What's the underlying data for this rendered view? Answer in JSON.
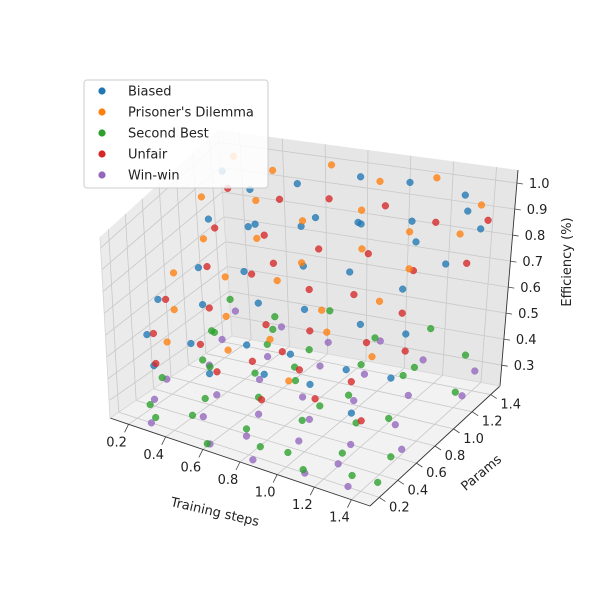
{
  "chart_data": {
    "type": "scatter",
    "title": "",
    "xlabel": "Training steps",
    "ylabel": "Params",
    "zlabel": "Efficiency (%)",
    "xlim": [
      0.1,
      1.5
    ],
    "ylim": [
      0.1,
      1.5
    ],
    "zlim": [
      0.22,
      1.05
    ],
    "x_ticks": [
      0.2,
      0.4,
      0.6,
      0.8,
      1.0,
      1.2,
      1.4
    ],
    "y_ticks": [
      0.2,
      0.4,
      0.6,
      0.8,
      1.0,
      1.2,
      1.4
    ],
    "z_ticks": [
      0.3,
      0.4,
      0.5,
      0.6,
      0.7,
      0.8,
      0.9,
      1.0
    ],
    "x_tick_labels": [
      "0.2",
      "0.4",
      "0.6",
      "0.8",
      "1.0",
      "1.2",
      "1.4"
    ],
    "y_tick_labels": [
      "0.2",
      "0.4",
      "0.6",
      "0.8",
      "1.0",
      "1.2",
      "1.4"
    ],
    "z_tick_labels": [
      "0.3",
      "0.4",
      "0.5",
      "0.6",
      "0.7",
      "0.8",
      "0.9",
      "1.0"
    ],
    "grid": true,
    "legend_position": "top-left",
    "series": [
      {
        "name": "Biased",
        "color": "#1f77b4",
        "points": [
          [
            0.15,
            1.4,
            0.92
          ],
          [
            0.3,
            1.35,
            0.88
          ],
          [
            0.55,
            1.3,
            0.95
          ],
          [
            0.8,
            1.42,
            0.97
          ],
          [
            1.05,
            1.38,
            0.99
          ],
          [
            1.3,
            1.41,
            0.96
          ],
          [
            1.45,
            1.25,
            0.9
          ],
          [
            0.2,
            1.1,
            0.82
          ],
          [
            0.45,
            1.05,
            0.85
          ],
          [
            0.7,
            1.15,
            0.88
          ],
          [
            0.95,
            1.08,
            0.91
          ],
          [
            1.2,
            1.12,
            0.86
          ],
          [
            1.4,
            1.0,
            0.84
          ],
          [
            0.25,
            0.85,
            0.7
          ],
          [
            0.5,
            0.8,
            0.74
          ],
          [
            0.75,
            0.9,
            0.77
          ],
          [
            1.0,
            0.85,
            0.8
          ],
          [
            1.25,
            0.88,
            0.76
          ],
          [
            0.15,
            0.6,
            0.62
          ],
          [
            0.4,
            0.55,
            0.66
          ],
          [
            0.65,
            0.62,
            0.69
          ],
          [
            0.9,
            0.58,
            0.72
          ],
          [
            1.15,
            0.65,
            0.68
          ],
          [
            1.4,
            0.6,
            0.7
          ],
          [
            0.2,
            0.35,
            0.55
          ],
          [
            0.45,
            0.3,
            0.58
          ],
          [
            0.7,
            0.38,
            0.6
          ],
          [
            0.95,
            0.32,
            0.63
          ],
          [
            1.2,
            0.4,
            0.59
          ],
          [
            1.45,
            0.35,
            0.62
          ],
          [
            0.3,
            0.2,
            0.48
          ],
          [
            0.6,
            0.18,
            0.52
          ],
          [
            0.85,
            0.25,
            0.55
          ],
          [
            1.1,
            0.22,
            0.57
          ],
          [
            1.35,
            0.15,
            0.53
          ],
          [
            0.35,
            1.2,
            0.78
          ],
          [
            0.6,
            1.22,
            0.81
          ],
          [
            0.85,
            1.28,
            0.84
          ],
          [
            1.1,
            1.3,
            0.87
          ],
          [
            1.35,
            1.33,
            0.93
          ]
        ]
      },
      {
        "name": "Prisoner's Dilemma",
        "color": "#ff7f0e",
        "points": [
          [
            0.2,
            1.42,
            0.98
          ],
          [
            0.4,
            1.38,
            0.96
          ],
          [
            0.65,
            1.45,
            0.99
          ],
          [
            0.9,
            1.4,
            0.97
          ],
          [
            1.15,
            1.44,
            1.0
          ],
          [
            1.4,
            1.36,
            0.95
          ],
          [
            0.15,
            1.15,
            0.89
          ],
          [
            0.4,
            1.18,
            0.9
          ],
          [
            0.65,
            1.12,
            0.87
          ],
          [
            0.9,
            1.2,
            0.92
          ],
          [
            1.15,
            1.16,
            0.88
          ],
          [
            1.4,
            1.14,
            0.91
          ],
          [
            0.25,
            0.92,
            0.8
          ],
          [
            0.5,
            0.95,
            0.83
          ],
          [
            0.75,
            0.88,
            0.79
          ],
          [
            1.0,
            0.98,
            0.85
          ],
          [
            1.25,
            0.94,
            0.82
          ],
          [
            0.2,
            0.68,
            0.72
          ],
          [
            0.45,
            0.7,
            0.74
          ],
          [
            0.7,
            0.72,
            0.76
          ],
          [
            0.95,
            0.66,
            0.7
          ],
          [
            1.2,
            0.74,
            0.75
          ],
          [
            0.3,
            0.45,
            0.65
          ],
          [
            0.55,
            0.48,
            0.66
          ],
          [
            0.8,
            0.42,
            0.63
          ],
          [
            1.05,
            0.5,
            0.68
          ],
          [
            1.3,
            0.46,
            0.64
          ],
          [
            0.35,
            0.25,
            0.58
          ],
          [
            0.65,
            0.28,
            0.6
          ],
          [
            1.0,
            0.2,
            0.57
          ]
        ]
      },
      {
        "name": "Second Best",
        "color": "#2ca02c",
        "points": [
          [
            0.15,
            1.4,
            0.4
          ],
          [
            0.4,
            1.35,
            0.38
          ],
          [
            0.65,
            1.42,
            0.42
          ],
          [
            0.9,
            1.38,
            0.36
          ],
          [
            1.15,
            1.45,
            0.41
          ],
          [
            1.4,
            1.3,
            0.39
          ],
          [
            0.2,
            1.1,
            0.35
          ],
          [
            0.45,
            1.15,
            0.33
          ],
          [
            0.7,
            1.08,
            0.37
          ],
          [
            0.95,
            1.12,
            0.34
          ],
          [
            1.2,
            1.05,
            0.36
          ],
          [
            1.45,
            1.1,
            0.32
          ],
          [
            0.25,
            0.85,
            0.31
          ],
          [
            0.5,
            0.9,
            0.29
          ],
          [
            0.75,
            0.82,
            0.33
          ],
          [
            1.0,
            0.88,
            0.3
          ],
          [
            1.25,
            0.8,
            0.28
          ],
          [
            0.15,
            0.6,
            0.28
          ],
          [
            0.4,
            0.55,
            0.26
          ],
          [
            0.65,
            0.62,
            0.3
          ],
          [
            0.9,
            0.58,
            0.27
          ],
          [
            1.15,
            0.65,
            0.29
          ],
          [
            1.4,
            0.52,
            0.25
          ],
          [
            0.2,
            0.35,
            0.24
          ],
          [
            0.45,
            0.3,
            0.27
          ],
          [
            0.7,
            0.38,
            0.25
          ],
          [
            0.95,
            0.32,
            0.23
          ],
          [
            1.2,
            0.4,
            0.26
          ],
          [
            1.45,
            0.28,
            0.24
          ],
          [
            0.3,
            0.2,
            0.25
          ],
          [
            0.6,
            0.15,
            0.23
          ],
          [
            0.85,
            0.22,
            0.26
          ],
          [
            1.1,
            0.18,
            0.24
          ],
          [
            1.35,
            0.2,
            0.27
          ],
          [
            0.55,
            1.0,
            0.45
          ],
          [
            0.8,
            0.7,
            0.43
          ],
          [
            1.05,
            0.45,
            0.4
          ],
          [
            0.35,
            0.75,
            0.48
          ],
          [
            1.3,
            0.95,
            0.44
          ],
          [
            0.5,
            0.4,
            0.46
          ]
        ]
      },
      {
        "name": "Unfair",
        "color": "#d62728",
        "points": [
          [
            0.18,
            1.38,
            0.86
          ],
          [
            0.42,
            1.4,
            0.84
          ],
          [
            0.68,
            1.35,
            0.89
          ],
          [
            0.92,
            1.42,
            0.87
          ],
          [
            1.18,
            1.38,
            0.85
          ],
          [
            1.42,
            1.4,
            0.88
          ],
          [
            0.22,
            1.12,
            0.78
          ],
          [
            0.48,
            1.08,
            0.8
          ],
          [
            0.72,
            1.14,
            0.76
          ],
          [
            0.98,
            1.1,
            0.79
          ],
          [
            1.22,
            1.06,
            0.77
          ],
          [
            1.45,
            1.12,
            0.81
          ],
          [
            0.28,
            0.88,
            0.7
          ],
          [
            0.52,
            0.84,
            0.72
          ],
          [
            0.78,
            0.9,
            0.68
          ],
          [
            1.02,
            0.86,
            0.71
          ],
          [
            1.28,
            0.82,
            0.69
          ],
          [
            0.18,
            0.62,
            0.62
          ],
          [
            0.42,
            0.58,
            0.64
          ],
          [
            0.68,
            0.64,
            0.6
          ],
          [
            0.92,
            0.6,
            0.63
          ],
          [
            1.18,
            0.66,
            0.61
          ],
          [
            1.42,
            0.56,
            0.65
          ],
          [
            0.22,
            0.38,
            0.55
          ],
          [
            0.48,
            0.34,
            0.57
          ],
          [
            0.72,
            0.4,
            0.53
          ],
          [
            0.98,
            0.36,
            0.56
          ],
          [
            1.22,
            0.42,
            0.54
          ],
          [
            0.32,
            0.18,
            0.5
          ],
          [
            0.62,
            0.22,
            0.52
          ],
          [
            0.88,
            0.16,
            0.48
          ],
          [
            1.12,
            0.24,
            0.51
          ],
          [
            1.38,
            0.2,
            0.49
          ],
          [
            0.58,
            0.95,
            0.74
          ],
          [
            0.85,
            0.45,
            0.58
          ]
        ]
      },
      {
        "name": "Win-win",
        "color": "#9467bd",
        "points": [
          [
            0.15,
            1.45,
            0.34
          ],
          [
            0.4,
            1.42,
            0.32
          ],
          [
            0.65,
            1.4,
            0.3
          ],
          [
            0.9,
            1.44,
            0.33
          ],
          [
            1.15,
            1.38,
            0.31
          ],
          [
            1.4,
            1.42,
            0.29
          ],
          [
            0.2,
            1.18,
            0.3
          ],
          [
            0.45,
            1.15,
            0.28
          ],
          [
            0.7,
            1.2,
            0.27
          ],
          [
            0.95,
            1.16,
            0.29
          ],
          [
            1.2,
            1.12,
            0.26
          ],
          [
            1.45,
            1.18,
            0.28
          ],
          [
            0.25,
            0.92,
            0.27
          ],
          [
            0.5,
            0.95,
            0.25
          ],
          [
            0.75,
            0.9,
            0.24
          ],
          [
            1.0,
            0.94,
            0.26
          ],
          [
            1.25,
            0.88,
            0.23
          ],
          [
            0.15,
            0.65,
            0.26
          ],
          [
            0.4,
            0.68,
            0.24
          ],
          [
            0.65,
            0.62,
            0.23
          ],
          [
            0.9,
            0.66,
            0.25
          ],
          [
            1.15,
            0.6,
            0.22
          ],
          [
            1.4,
            0.64,
            0.24
          ],
          [
            0.2,
            0.4,
            0.25
          ],
          [
            0.45,
            0.42,
            0.23
          ],
          [
            0.7,
            0.38,
            0.22
          ],
          [
            0.95,
            0.44,
            0.24
          ],
          [
            1.2,
            0.36,
            0.23
          ],
          [
            0.3,
            0.15,
            0.24
          ],
          [
            0.6,
            0.18,
            0.22
          ],
          [
            0.85,
            0.14,
            0.23
          ],
          [
            1.1,
            0.2,
            0.22
          ],
          [
            1.35,
            0.16,
            0.24
          ]
        ]
      }
    ]
  }
}
